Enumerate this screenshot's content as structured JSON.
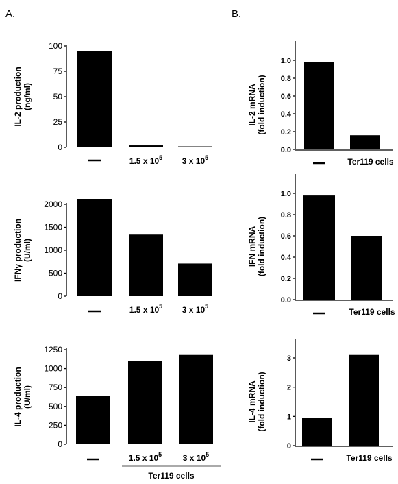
{
  "panel_labels": {
    "a": "A.",
    "b": "B."
  },
  "group_label": "Ter119 cells",
  "chart_data": [
    {
      "id": "a1",
      "type": "bar",
      "categories": [
        "—",
        "1.5 x 10^5",
        "3 x 10^5"
      ],
      "values": [
        95,
        2,
        1
      ],
      "ylabel": "IL-2 production",
      "ylabel_unit": "(ng/ml)",
      "ylim": [
        0,
        100
      ],
      "yticks": [
        0,
        25,
        50,
        75,
        100
      ],
      "xlabel": "",
      "grid": false
    },
    {
      "id": "a2",
      "type": "bar",
      "categories": [
        "—",
        "1.5 x 10^5",
        "3 x 10^5"
      ],
      "values": [
        2110,
        1340,
        710
      ],
      "ylabel": "IFNγ production",
      "ylabel_unit": "(U/ml)",
      "ylim": [
        0,
        2000
      ],
      "yticks": [
        0,
        500,
        1000,
        1500,
        2000
      ],
      "xlabel": "",
      "grid": false
    },
    {
      "id": "a3",
      "type": "bar",
      "categories": [
        "—",
        "1.5 x 10^5",
        "3 x 10^5"
      ],
      "values": [
        640,
        1100,
        1180
      ],
      "ylabel": "IL-4 production",
      "ylabel_unit": "(U/ml)",
      "ylim": [
        0,
        1250
      ],
      "yticks": [
        0,
        250,
        500,
        750,
        1000,
        1250
      ],
      "xlabel": "Ter119 cells",
      "grid": false
    },
    {
      "id": "b1",
      "type": "bar",
      "categories": [
        "—",
        "Ter119 cells"
      ],
      "values": [
        0.98,
        0.16
      ],
      "ylabel": "IL-2 mRNA",
      "ylabel_unit": "(fold induction)",
      "ylim": [
        0,
        1.0
      ],
      "yticks": [
        0.0,
        0.2,
        0.4,
        0.6,
        0.8,
        1.0
      ],
      "xlabel": "",
      "grid": false
    },
    {
      "id": "b2",
      "type": "bar",
      "categories": [
        "—",
        "Ter119 cells"
      ],
      "values": [
        0.98,
        0.6
      ],
      "ylabel": "IFN  mRNA",
      "ylabel_unit": "(fold induction)",
      "ylim": [
        0,
        1.0
      ],
      "yticks": [
        0.0,
        0.2,
        0.4,
        0.6,
        0.8,
        1.0
      ],
      "xlabel": "",
      "grid": false
    },
    {
      "id": "b3",
      "type": "bar",
      "categories": [
        "—",
        "Ter119 cells"
      ],
      "values": [
        0.95,
        3.1
      ],
      "ylabel": "IL-4 mRNA",
      "ylabel_unit": "(fold induction)",
      "ylim": [
        0,
        3
      ],
      "yticks": [
        0,
        1,
        2,
        3
      ],
      "xlabel": "",
      "grid": false
    }
  ]
}
